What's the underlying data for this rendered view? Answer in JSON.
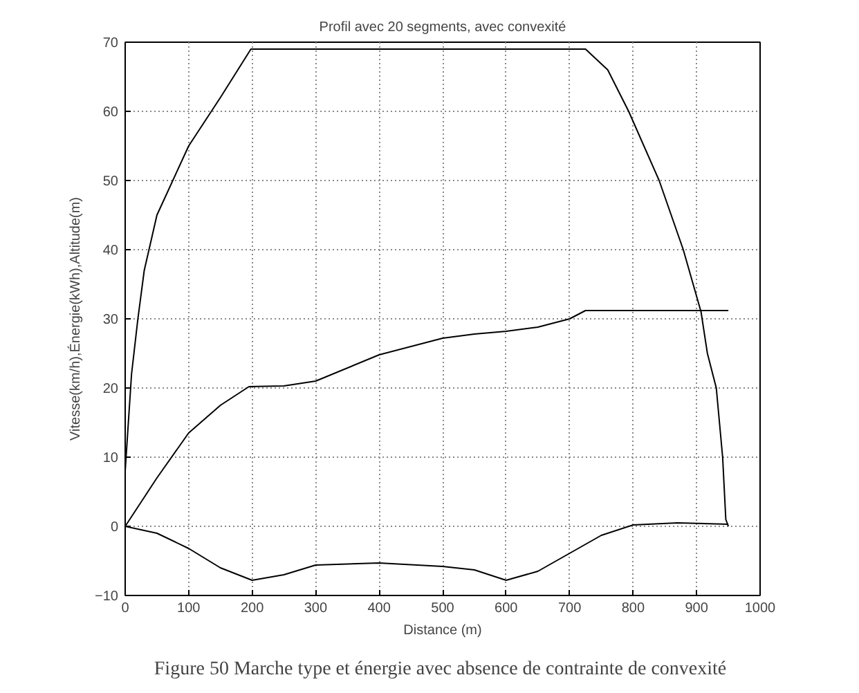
{
  "chart_data": {
    "type": "line",
    "title": "Profil avec 20 segments, avec convexité",
    "xlabel": "Distance (m)",
    "ylabel": "Vitesse(km/h),Énergie(kWh),Altitude(m)",
    "annotations": [
      "Figure 50  Marche type et énergie avec absence de contrainte de convexité"
    ],
    "xlim": [
      0,
      1000
    ],
    "ylim": [
      -10,
      70
    ],
    "xticks": [
      0,
      100,
      200,
      300,
      400,
      500,
      600,
      700,
      800,
      900,
      1000
    ],
    "yticks": [
      -10,
      0,
      10,
      20,
      30,
      40,
      50,
      60,
      70
    ],
    "grid": true,
    "line_style": "solid",
    "marker": "none",
    "series": [
      {
        "color": "#000000",
        "x": [
          0,
          10,
          20,
          30,
          50,
          100,
          150,
          198,
          725,
          760,
          793,
          841,
          879,
          907,
          917,
          931,
          941,
          946,
          950
        ],
        "values": [
          8,
          22,
          30,
          37,
          45,
          55,
          62,
          69,
          69,
          66,
          60,
          50,
          40,
          31,
          25,
          20,
          10,
          1,
          0
        ]
      },
      {
        "color": "#000000",
        "x": [
          0,
          50,
          100,
          150,
          195,
          250,
          300,
          400,
          500,
          550,
          600,
          650,
          700,
          725,
          950
        ],
        "values": [
          0,
          7,
          13.5,
          17.5,
          20.2,
          20.3,
          21,
          24.8,
          27.2,
          27.8,
          28.2,
          28.8,
          30,
          31.2,
          31.2
        ]
      },
      {
        "color": "#000000",
        "x": [
          0,
          50,
          100,
          150,
          200,
          250,
          300,
          400,
          500,
          550,
          600,
          650,
          700,
          750,
          800,
          870,
          950
        ],
        "values": [
          0,
          -1,
          -3.2,
          -6,
          -7.8,
          -7,
          -5.6,
          -5.3,
          -5.8,
          -6.3,
          -7.8,
          -6.5,
          -3.9,
          -1.3,
          0.2,
          0.5,
          0.3
        ]
      }
    ]
  }
}
